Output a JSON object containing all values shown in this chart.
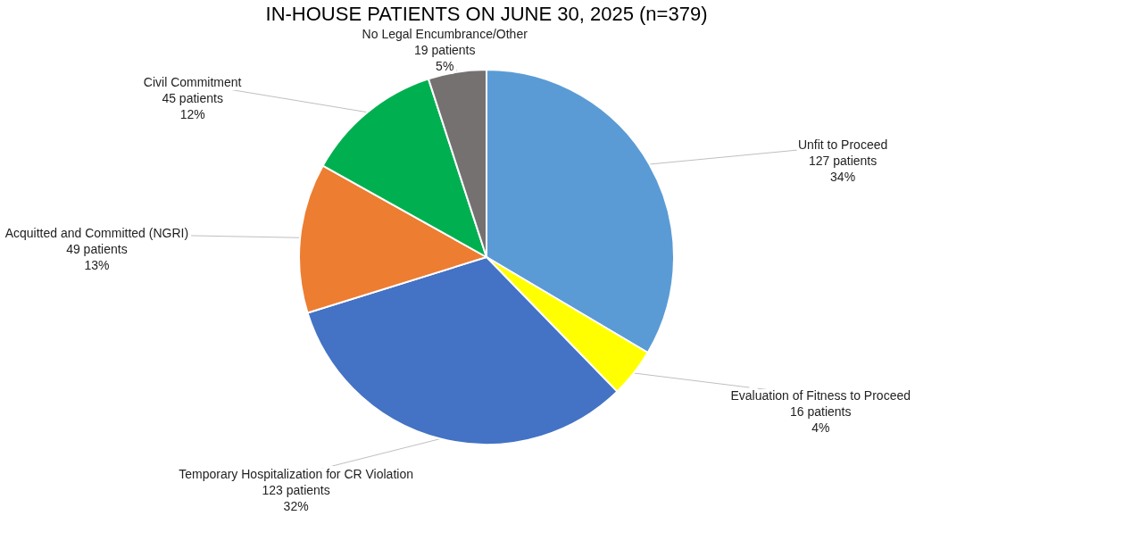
{
  "chart_data": {
    "type": "pie",
    "title": "IN-HOUSE PATIENTS ON JUNE 30, 2025 (n=379)",
    "categories": [
      "Unfit to Proceed",
      "Evaluation of Fitness to Proceed",
      "Temporary Hospitalization for CR Violation",
      "Acquitted and Committed (NGRI)",
      "Civil Commitment",
      "No Legal Encumbrance/Other"
    ],
    "values": [
      127,
      16,
      123,
      49,
      45,
      19
    ],
    "colors": [
      "#5b9bd5",
      "#ffff00",
      "#4472c4",
      "#ed7d31",
      "#00b050",
      "#767171"
    ],
    "value_labels": [
      "127 patients\n34%",
      "16 patients\n4%",
      "123 patients\n32%",
      "49 patients\n13%",
      "45 patients\n12%",
      "19 patients\n5%"
    ],
    "legend": false
  }
}
